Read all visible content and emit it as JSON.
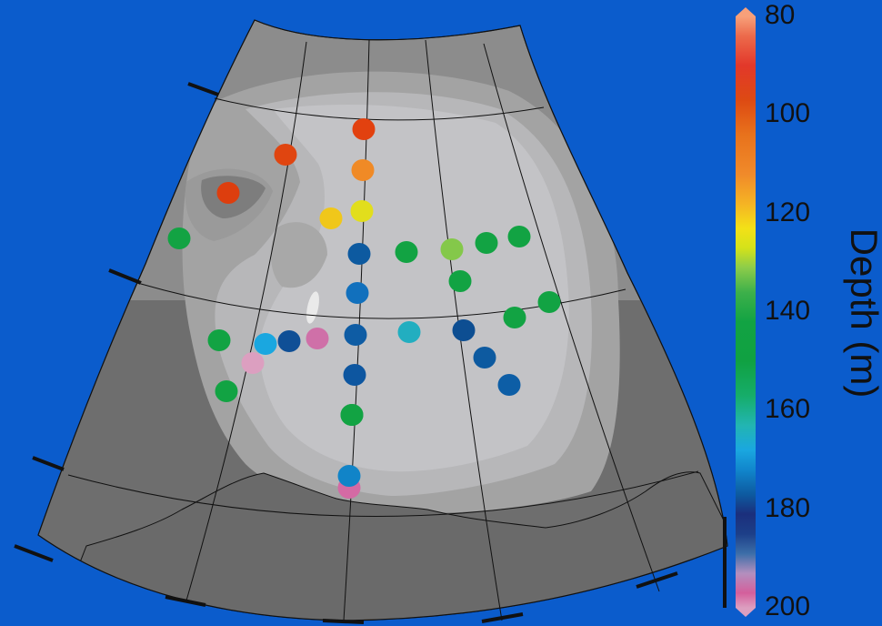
{
  "colorbar": {
    "label": "Depth (m)",
    "ticks": [
      "80",
      "100",
      "120",
      "140",
      "160",
      "180",
      "200"
    ],
    "tick_values": [
      80,
      100,
      120,
      140,
      160,
      180,
      200
    ],
    "range": [
      80,
      200
    ],
    "colors": [
      {
        "v": 80,
        "c": "#f7a07a"
      },
      {
        "v": 84,
        "c": "#ec6a4b"
      },
      {
        "v": 90,
        "c": "#e2382a"
      },
      {
        "v": 97,
        "c": "#dd4a13"
      },
      {
        "v": 104,
        "c": "#e8721c"
      },
      {
        "v": 112,
        "c": "#f08a2a"
      },
      {
        "v": 118,
        "c": "#f5b324"
      },
      {
        "v": 123,
        "c": "#f3e117"
      },
      {
        "v": 127,
        "c": "#d4e21a"
      },
      {
        "v": 131,
        "c": "#8ccc4a"
      },
      {
        "v": 136,
        "c": "#3db04a"
      },
      {
        "v": 142,
        "c": "#12a343"
      },
      {
        "v": 150,
        "c": "#10a142"
      },
      {
        "v": 157,
        "c": "#16ad6a"
      },
      {
        "v": 163,
        "c": "#22b5b2"
      },
      {
        "v": 168,
        "c": "#1aa7e0"
      },
      {
        "v": 172,
        "c": "#1186cc"
      },
      {
        "v": 177,
        "c": "#0d5aa0"
      },
      {
        "v": 181,
        "c": "#1b2f7c"
      },
      {
        "v": 185,
        "c": "#1d3f88"
      },
      {
        "v": 189,
        "c": "#3c6ea8"
      },
      {
        "v": 193,
        "c": "#b38fbe"
      },
      {
        "v": 197,
        "c": "#d45f9c"
      },
      {
        "v": 200,
        "c": "#dc9fc0"
      }
    ]
  },
  "stations": [
    {
      "id": "s1",
      "depth": 96,
      "color": "#e2410f"
    },
    {
      "id": "s2",
      "depth": 98,
      "color": "#e04510"
    },
    {
      "id": "s3",
      "depth": 96,
      "color": "#dd3e0e"
    },
    {
      "id": "s4",
      "depth": 110,
      "color": "#f08a26"
    },
    {
      "id": "s5",
      "depth": 124,
      "color": "#f0c71a"
    },
    {
      "id": "s6",
      "depth": 126,
      "color": "#e2de1c"
    },
    {
      "id": "s7",
      "depth": 146,
      "color": "#12a343"
    },
    {
      "id": "s8",
      "depth": 178,
      "color": "#0d5aa0"
    },
    {
      "id": "s9",
      "depth": 146,
      "color": "#12a343"
    },
    {
      "id": "s10",
      "depth": 132,
      "color": "#84c84a"
    },
    {
      "id": "s11",
      "depth": 146,
      "color": "#12a343"
    },
    {
      "id": "s12",
      "depth": 146,
      "color": "#12a343"
    },
    {
      "id": "s13",
      "depth": 146,
      "color": "#12a343"
    },
    {
      "id": "s14",
      "depth": 175,
      "color": "#1170bd"
    },
    {
      "id": "s15",
      "depth": 146,
      "color": "#12a343"
    },
    {
      "id": "s16",
      "depth": 146,
      "color": "#12a343"
    },
    {
      "id": "s17",
      "depth": 146,
      "color": "#12a343"
    },
    {
      "id": "s18",
      "depth": 146,
      "color": "#12a343"
    },
    {
      "id": "s19",
      "depth": 170,
      "color": "#1aa7e0"
    },
    {
      "id": "s20",
      "depth": 180,
      "color": "#0f4f96"
    },
    {
      "id": "s21",
      "depth": 196,
      "color": "#cf70a8"
    },
    {
      "id": "s22",
      "depth": 177,
      "color": "#0e5ca4"
    },
    {
      "id": "s23",
      "depth": 166,
      "color": "#22aec0"
    },
    {
      "id": "s24",
      "depth": 179,
      "color": "#0d4e92"
    },
    {
      "id": "s25",
      "depth": 176,
      "color": "#0d5aa0"
    },
    {
      "id": "s26",
      "depth": 176,
      "color": "#0d5ea6"
    },
    {
      "id": "s27",
      "depth": 199,
      "color": "#dc9fc0"
    },
    {
      "id": "s28",
      "depth": 146,
      "color": "#12a343"
    },
    {
      "id": "s29",
      "depth": 178,
      "color": "#0d56a0"
    },
    {
      "id": "s30",
      "depth": 146,
      "color": "#12a343"
    },
    {
      "id": "s31",
      "depth": 173,
      "color": "#1184c8"
    },
    {
      "id": "s32",
      "depth": 197,
      "color": "#d46aa4"
    }
  ]
}
